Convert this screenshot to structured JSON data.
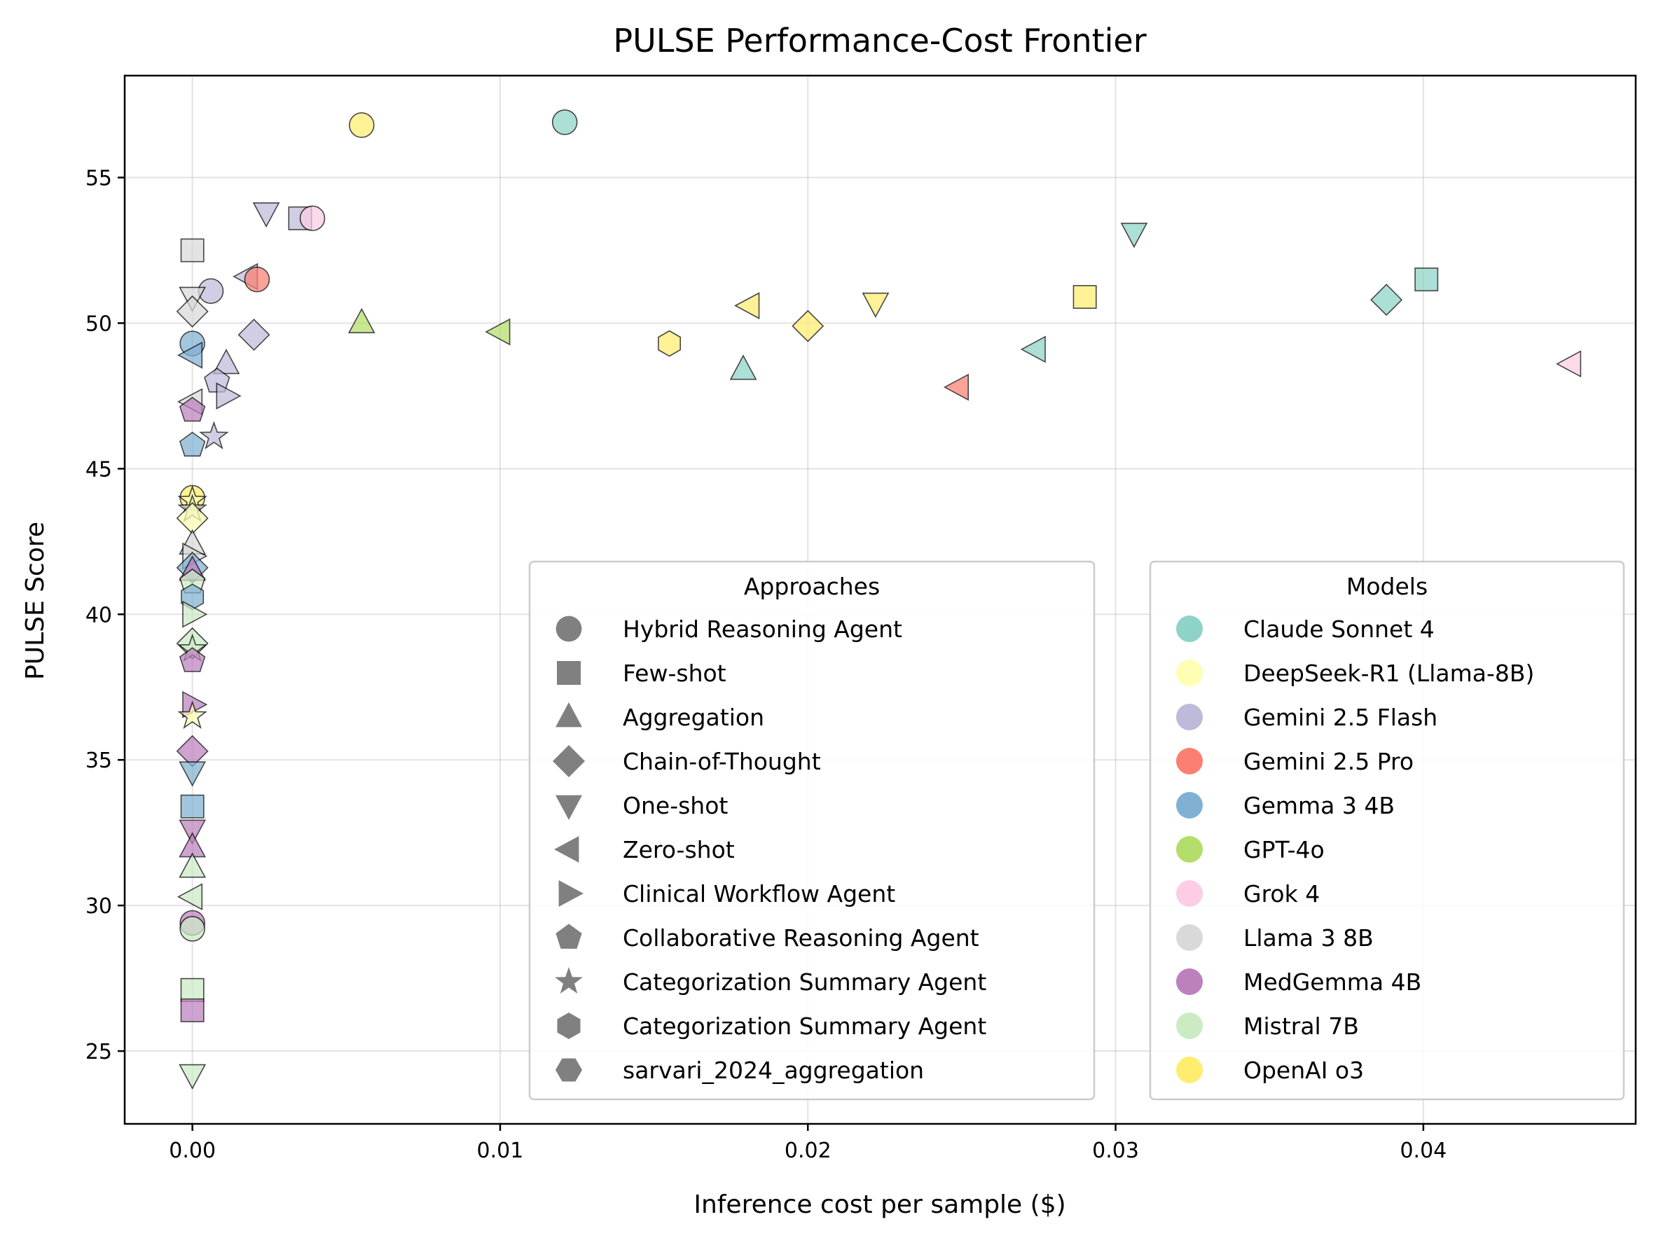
{
  "chart_data": {
    "type": "scatter",
    "title": "PULSE Performance-Cost Frontier",
    "xlabel": "Inference cost per sample ($)",
    "ylabel": "PULSE Score",
    "xlim": [
      -0.0022,
      0.0469
    ],
    "ylim": [
      22.5,
      58.5
    ],
    "xticks": [
      0.0,
      0.01,
      0.02,
      0.03,
      0.04
    ],
    "xtick_labels": [
      "0.00",
      "0.01",
      "0.02",
      "0.03",
      "0.04"
    ],
    "yticks": [
      25,
      30,
      35,
      40,
      45,
      50,
      55
    ],
    "ytick_labels": [
      "25",
      "30",
      "35",
      "40",
      "45",
      "50",
      "55"
    ],
    "grid": true,
    "approaches_legend": {
      "title": "Approaches",
      "placement": "lower-center",
      "entries": [
        {
          "label": "Hybrid Reasoning Agent",
          "marker": "circle"
        },
        {
          "label": "Few-shot",
          "marker": "square"
        },
        {
          "label": "Aggregation",
          "marker": "triangle-up"
        },
        {
          "label": "Chain-of-Thought",
          "marker": "diamond"
        },
        {
          "label": "One-shot",
          "marker": "triangle-down"
        },
        {
          "label": "Zero-shot",
          "marker": "triangle-left"
        },
        {
          "label": "Clinical Workflow Agent",
          "marker": "triangle-right"
        },
        {
          "label": "Collaborative Reasoning Agent",
          "marker": "pentagon"
        },
        {
          "label": "Categorization Summary Agent",
          "marker": "star"
        },
        {
          "label": "Categorization Summary Agent",
          "marker": "hexagon"
        },
        {
          "label": "sarvari_2024_aggregation",
          "marker": "hexagon2"
        }
      ]
    },
    "models_legend": {
      "title": "Models",
      "placement": "lower-right",
      "entries": [
        {
          "label": "Claude Sonnet 4",
          "color": "#8dd3c7"
        },
        {
          "label": "DeepSeek-R1 (Llama-8B)",
          "color": "#ffffb3"
        },
        {
          "label": "Gemini 2.5 Flash",
          "color": "#bebada"
        },
        {
          "label": "Gemini 2.5 Pro",
          "color": "#fb8072"
        },
        {
          "label": "Gemma 3 4B",
          "color": "#80b1d3"
        },
        {
          "label": "GPT-4o",
          "color": "#b3de69"
        },
        {
          "label": "Grok 4",
          "color": "#fccde5"
        },
        {
          "label": "Llama 3 8B",
          "color": "#d9d9d9"
        },
        {
          "label": "MedGemma 4B",
          "color": "#bc80bd"
        },
        {
          "label": "Mistral 7B",
          "color": "#ccebc5"
        },
        {
          "label": "OpenAI o3",
          "color": "#ffed6f"
        }
      ]
    },
    "points": [
      {
        "model": "OpenAI o3",
        "approach": "circle",
        "x": 0.0055,
        "y": 56.8
      },
      {
        "model": "Claude Sonnet 4",
        "approach": "circle",
        "x": 0.0121,
        "y": 56.9
      },
      {
        "model": "Gemini 2.5 Flash",
        "approach": "triangle-down",
        "x": 0.0024,
        "y": 53.8
      },
      {
        "model": "Gemini 2.5 Flash",
        "approach": "square",
        "x": 0.0035,
        "y": 53.6
      },
      {
        "model": "Grok 4",
        "approach": "circle",
        "x": 0.0039,
        "y": 53.6
      },
      {
        "model": "Claude Sonnet 4",
        "approach": "triangle-down",
        "x": 0.0306,
        "y": 53.1
      },
      {
        "model": "Llama 3 8B",
        "approach": "square",
        "x": 0.0,
        "y": 52.5
      },
      {
        "model": "Gemini 2.5 Flash",
        "approach": "triangle-left",
        "x": 0.0018,
        "y": 51.6
      },
      {
        "model": "Gemini 2.5 Pro",
        "approach": "circle",
        "x": 0.0021,
        "y": 51.5
      },
      {
        "model": "Claude Sonnet 4",
        "approach": "square",
        "x": 0.0401,
        "y": 51.5
      },
      {
        "model": "Gemini 2.5 Flash",
        "approach": "circle",
        "x": 0.0006,
        "y": 51.1
      },
      {
        "model": "Llama 3 8B",
        "approach": "triangle-down",
        "x": 0.0,
        "y": 50.9
      },
      {
        "model": "OpenAI o3",
        "approach": "square",
        "x": 0.029,
        "y": 50.9
      },
      {
        "model": "Claude Sonnet 4",
        "approach": "diamond",
        "x": 0.0388,
        "y": 50.8
      },
      {
        "model": "OpenAI o3",
        "approach": "triangle-left",
        "x": 0.0181,
        "y": 50.6
      },
      {
        "model": "OpenAI o3",
        "approach": "triangle-down",
        "x": 0.0222,
        "y": 50.7
      },
      {
        "model": "Llama 3 8B",
        "approach": "diamond",
        "x": 0.0,
        "y": 50.4
      },
      {
        "model": "GPT-4o",
        "approach": "triangle-up",
        "x": 0.0055,
        "y": 50.0
      },
      {
        "model": "OpenAI o3",
        "approach": "diamond",
        "x": 0.02,
        "y": 49.9
      },
      {
        "model": "GPT-4o",
        "approach": "triangle-left",
        "x": 0.01,
        "y": 49.7
      },
      {
        "model": "Gemini 2.5 Flash",
        "approach": "diamond",
        "x": 0.002,
        "y": 49.6
      },
      {
        "model": "OpenAI o3",
        "approach": "hexagon",
        "x": 0.0155,
        "y": 49.3
      },
      {
        "model": "Gemma 3 4B",
        "approach": "circle",
        "x": 0.0,
        "y": 49.3
      },
      {
        "model": "Claude Sonnet 4",
        "approach": "triangle-left",
        "x": 0.0274,
        "y": 49.1
      },
      {
        "model": "Gemma 3 4B",
        "approach": "triangle-left",
        "x": 0.0,
        "y": 48.9
      },
      {
        "model": "Grok 4",
        "approach": "triangle-left",
        "x": 0.0448,
        "y": 48.6
      },
      {
        "model": "Gemini 2.5 Flash",
        "approach": "triangle-up",
        "x": 0.0011,
        "y": 48.6
      },
      {
        "model": "Claude Sonnet 4",
        "approach": "triangle-up",
        "x": 0.0179,
        "y": 48.4
      },
      {
        "model": "Gemini 2.5 Flash",
        "approach": "pentagon",
        "x": 0.0008,
        "y": 48.0
      },
      {
        "model": "Gemini 2.5 Pro",
        "approach": "triangle-left",
        "x": 0.0249,
        "y": 47.8
      },
      {
        "model": "Gemini 2.5 Flash",
        "approach": "triangle-right",
        "x": 0.0011,
        "y": 47.5
      },
      {
        "model": "Llama 3 8B",
        "approach": "triangle-left",
        "x": 0.0,
        "y": 47.3
      },
      {
        "model": "MedGemma 4B",
        "approach": "pentagon",
        "x": 0.0,
        "y": 47.0
      },
      {
        "model": "Gemini 2.5 Flash",
        "approach": "star",
        "x": 0.0007,
        "y": 46.1
      },
      {
        "model": "Gemma 3 4B",
        "approach": "pentagon",
        "x": 0.0,
        "y": 45.8
      },
      {
        "model": "OpenAI o3",
        "approach": "circle",
        "x": 0.0,
        "y": 44.0
      },
      {
        "model": "DeepSeek-R1 (Llama-8B)",
        "approach": "star",
        "x": 0.0,
        "y": 43.9
      },
      {
        "model": "Llama 3 8B",
        "approach": "star",
        "x": 0.0,
        "y": 43.6
      },
      {
        "model": "DeepSeek-R1 (Llama-8B)",
        "approach": "diamond",
        "x": 0.0,
        "y": 43.3
      },
      {
        "model": "Llama 3 8B",
        "approach": "triangle-up",
        "x": 0.0,
        "y": 42.4
      },
      {
        "model": "Llama 3 8B",
        "approach": "triangle-right",
        "x": 0.0,
        "y": 42.0
      },
      {
        "model": "Gemma 3 4B",
        "approach": "diamond",
        "x": 0.0,
        "y": 41.6
      },
      {
        "model": "MedGemma 4B",
        "approach": "triangle-up",
        "x": 0.0,
        "y": 41.5
      },
      {
        "model": "Mistral 7B",
        "approach": "pentagon",
        "x": 0.0,
        "y": 41.1
      },
      {
        "model": "Gemma 3 4B",
        "approach": "hexagon",
        "x": 0.0,
        "y": 40.6
      },
      {
        "model": "Mistral 7B",
        "approach": "triangle-right",
        "x": 0.0,
        "y": 40.0
      },
      {
        "model": "Mistral 7B",
        "approach": "diamond",
        "x": 0.0,
        "y": 39.0
      },
      {
        "model": "Mistral 7B",
        "approach": "star",
        "x": 0.0,
        "y": 38.8
      },
      {
        "model": "MedGemma 4B",
        "approach": "pentagon",
        "x": 0.0,
        "y": 38.4
      },
      {
        "model": "MedGemma 4B",
        "approach": "triangle-right",
        "x": 0.0,
        "y": 36.9
      },
      {
        "model": "DeepSeek-R1 (Llama-8B)",
        "approach": "star",
        "x": 0.0,
        "y": 36.5
      },
      {
        "model": "MedGemma 4B",
        "approach": "diamond",
        "x": 0.0,
        "y": 35.3
      },
      {
        "model": "Gemma 3 4B",
        "approach": "triangle-down",
        "x": 0.0,
        "y": 34.6
      },
      {
        "model": "Gemma 3 4B",
        "approach": "square",
        "x": 0.0,
        "y": 33.4
      },
      {
        "model": "MedGemma 4B",
        "approach": "triangle-down",
        "x": 0.0,
        "y": 32.6
      },
      {
        "model": "MedGemma 4B",
        "approach": "triangle-up",
        "x": 0.0,
        "y": 32.0
      },
      {
        "model": "Mistral 7B",
        "approach": "triangle-up",
        "x": 0.0,
        "y": 31.3
      },
      {
        "model": "Mistral 7B",
        "approach": "triangle-left",
        "x": 0.0,
        "y": 30.3
      },
      {
        "model": "MedGemma 4B",
        "approach": "circle",
        "x": 0.0,
        "y": 29.4
      },
      {
        "model": "Mistral 7B",
        "approach": "circle",
        "x": 0.0,
        "y": 29.2
      },
      {
        "model": "Mistral 7B",
        "approach": "square",
        "x": 0.0,
        "y": 27.1
      },
      {
        "model": "MedGemma 4B",
        "approach": "square",
        "x": 0.0,
        "y": 26.4
      },
      {
        "model": "Mistral 7B",
        "approach": "triangle-down",
        "x": 0.0,
        "y": 24.2
      }
    ]
  }
}
